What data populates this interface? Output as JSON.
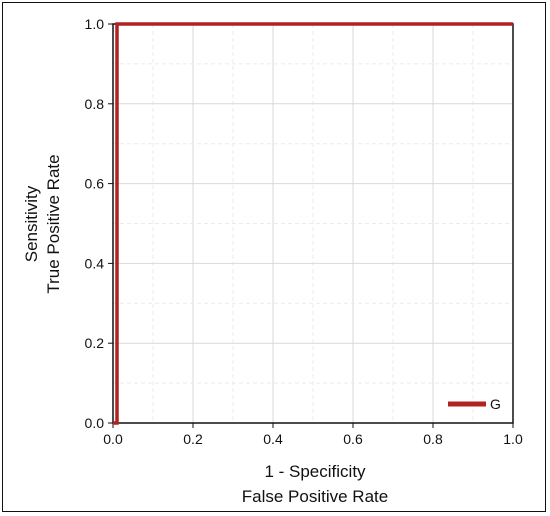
{
  "chart_data": {
    "type": "line",
    "xlabel_lines": [
      "1 - Specificity",
      "False Positive Rate"
    ],
    "ylabel_lines": [
      "Sensitivity",
      "True Positive Rate"
    ],
    "xlim": [
      0.0,
      1.0
    ],
    "ylim": [
      0.0,
      1.0
    ],
    "x_ticks": [
      "0.0",
      "0.2",
      "0.4",
      "0.6",
      "0.8",
      "1.0"
    ],
    "y_ticks": [
      "0.0",
      "0.2",
      "0.4",
      "0.6",
      "0.8",
      "1.0"
    ],
    "grid": true,
    "legend_position": "bottom-right",
    "series": [
      {
        "name": "G",
        "color": "#b22222",
        "x": [
          0.0,
          0.0,
          0.01,
          0.01,
          1.0
        ],
        "y": [
          0.0,
          0.0,
          0.0,
          1.0,
          1.0
        ]
      }
    ]
  }
}
